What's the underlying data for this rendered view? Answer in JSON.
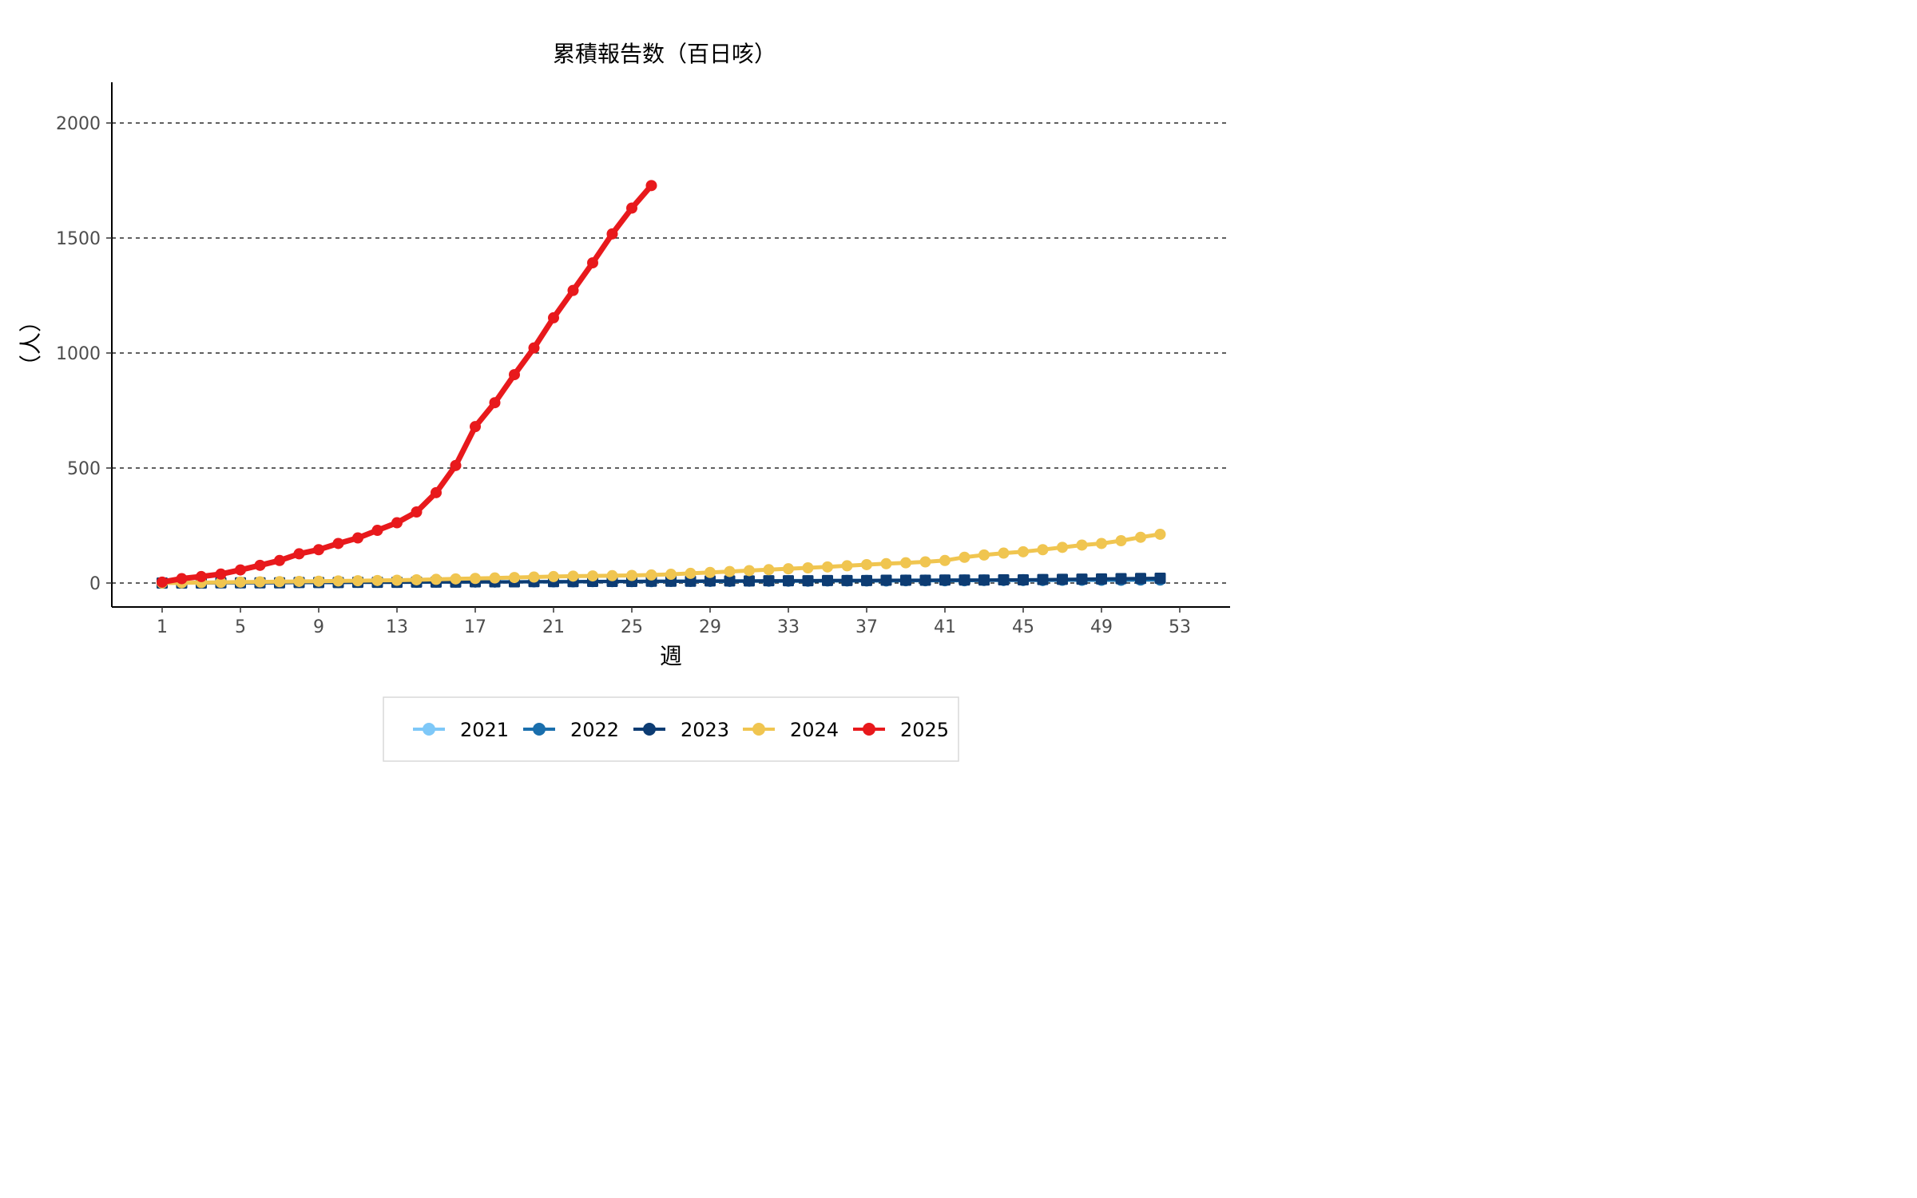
{
  "chart_data": {
    "type": "line",
    "title": "累積報告数（百日咳）",
    "xlabel": "週",
    "ylabel": "（人）",
    "xlim": [
      1,
      53
    ],
    "ylim": [
      -100,
      2200
    ],
    "x_ticks": [
      1,
      5,
      9,
      13,
      17,
      21,
      25,
      29,
      33,
      37,
      41,
      45,
      49,
      53
    ],
    "y_ticks": [
      0,
      500,
      1000,
      1500,
      2000
    ],
    "grid": "horizontal dashed",
    "legend_position": "bottom",
    "series": [
      {
        "name": "2021",
        "color": "#7ec8f8",
        "x": [
          1,
          2,
          3,
          4,
          5,
          6,
          7,
          8,
          9,
          10,
          11,
          12,
          13,
          14,
          15,
          16,
          17,
          18,
          19,
          20,
          21,
          22,
          23,
          24,
          25,
          26,
          27,
          28,
          29,
          30,
          31,
          32,
          33,
          34,
          35,
          36,
          37,
          38,
          39,
          40,
          41,
          42,
          43,
          44,
          45,
          46,
          47,
          48,
          49,
          50,
          51,
          52
        ],
        "values": [
          0,
          0,
          1,
          1,
          1,
          2,
          2,
          2,
          3,
          3,
          3,
          4,
          4,
          4,
          5,
          5,
          5,
          6,
          6,
          6,
          7,
          7,
          7,
          8,
          8,
          8,
          9,
          9,
          9,
          10,
          10,
          10,
          11,
          11,
          11,
          12,
          12,
          12,
          13,
          13,
          13,
          14,
          14,
          14,
          15,
          15,
          16,
          16,
          17,
          17,
          18,
          18
        ]
      },
      {
        "name": "2022",
        "color": "#1a6fad",
        "x": [
          1,
          2,
          3,
          4,
          5,
          6,
          7,
          8,
          9,
          10,
          11,
          12,
          13,
          14,
          15,
          16,
          17,
          18,
          19,
          20,
          21,
          22,
          23,
          24,
          25,
          26,
          27,
          28,
          29,
          30,
          31,
          32,
          33,
          34,
          35,
          36,
          37,
          38,
          39,
          40,
          41,
          42,
          43,
          44,
          45,
          46,
          47,
          48,
          49,
          50,
          51,
          52
        ],
        "values": [
          0,
          0,
          1,
          1,
          1,
          1,
          2,
          2,
          2,
          2,
          3,
          3,
          3,
          3,
          4,
          4,
          4,
          4,
          5,
          5,
          5,
          5,
          6,
          6,
          6,
          6,
          7,
          7,
          7,
          7,
          8,
          8,
          8,
          8,
          9,
          9,
          9,
          9,
          10,
          10,
          10,
          10,
          11,
          11,
          11,
          11,
          12,
          12,
          12,
          12,
          13,
          13
        ]
      },
      {
        "name": "2023",
        "color": "#0d3c73",
        "x": [
          1,
          2,
          3,
          4,
          5,
          6,
          7,
          8,
          9,
          10,
          11,
          12,
          13,
          14,
          15,
          16,
          17,
          18,
          19,
          20,
          21,
          22,
          23,
          24,
          25,
          26,
          27,
          28,
          29,
          30,
          31,
          32,
          33,
          34,
          35,
          36,
          37,
          38,
          39,
          40,
          41,
          42,
          43,
          44,
          45,
          46,
          47,
          48,
          49,
          50,
          51,
          52
        ],
        "values": [
          0,
          0,
          0,
          1,
          1,
          1,
          1,
          2,
          2,
          2,
          3,
          3,
          3,
          4,
          4,
          4,
          5,
          5,
          5,
          6,
          6,
          6,
          7,
          7,
          7,
          8,
          8,
          8,
          9,
          9,
          9,
          10,
          10,
          10,
          11,
          11,
          11,
          12,
          12,
          12,
          13,
          13,
          13,
          14,
          14,
          15,
          16,
          17,
          18,
          19,
          20,
          21
        ]
      },
      {
        "name": "2024",
        "color": "#f0c550",
        "x": [
          1,
          2,
          3,
          4,
          5,
          6,
          7,
          8,
          9,
          10,
          11,
          12,
          13,
          14,
          15,
          16,
          17,
          18,
          19,
          20,
          21,
          22,
          23,
          24,
          25,
          26,
          27,
          28,
          29,
          30,
          31,
          32,
          33,
          34,
          35,
          36,
          37,
          38,
          39,
          40,
          41,
          42,
          43,
          44,
          45,
          46,
          47,
          48,
          49,
          50,
          51,
          52
        ],
        "values": [
          0,
          1,
          2,
          3,
          4,
          5,
          6,
          7,
          8,
          9,
          10,
          11,
          12,
          14,
          16,
          18,
          20,
          22,
          24,
          26,
          28,
          30,
          31,
          32,
          33,
          35,
          38,
          42,
          46,
          50,
          54,
          58,
          62,
          66,
          70,
          75,
          80,
          84,
          88,
          92,
          98,
          112,
          122,
          130,
          136,
          145,
          155,
          165,
          172,
          184,
          199,
          212
        ]
      },
      {
        "name": "2025",
        "color": "#e8191c",
        "x": [
          1,
          2,
          3,
          4,
          5,
          6,
          7,
          8,
          9,
          10,
          11,
          12,
          13,
          14,
          15,
          16,
          17,
          18,
          19,
          20,
          21,
          22,
          23,
          24,
          25,
          26
        ],
        "values": [
          4,
          19,
          28,
          39,
          57,
          77,
          98,
          127,
          145,
          172,
          196,
          229,
          262,
          309,
          393,
          511,
          680,
          784,
          906,
          1022,
          1153,
          1272,
          1392,
          1518,
          1630,
          1728
        ]
      }
    ]
  }
}
